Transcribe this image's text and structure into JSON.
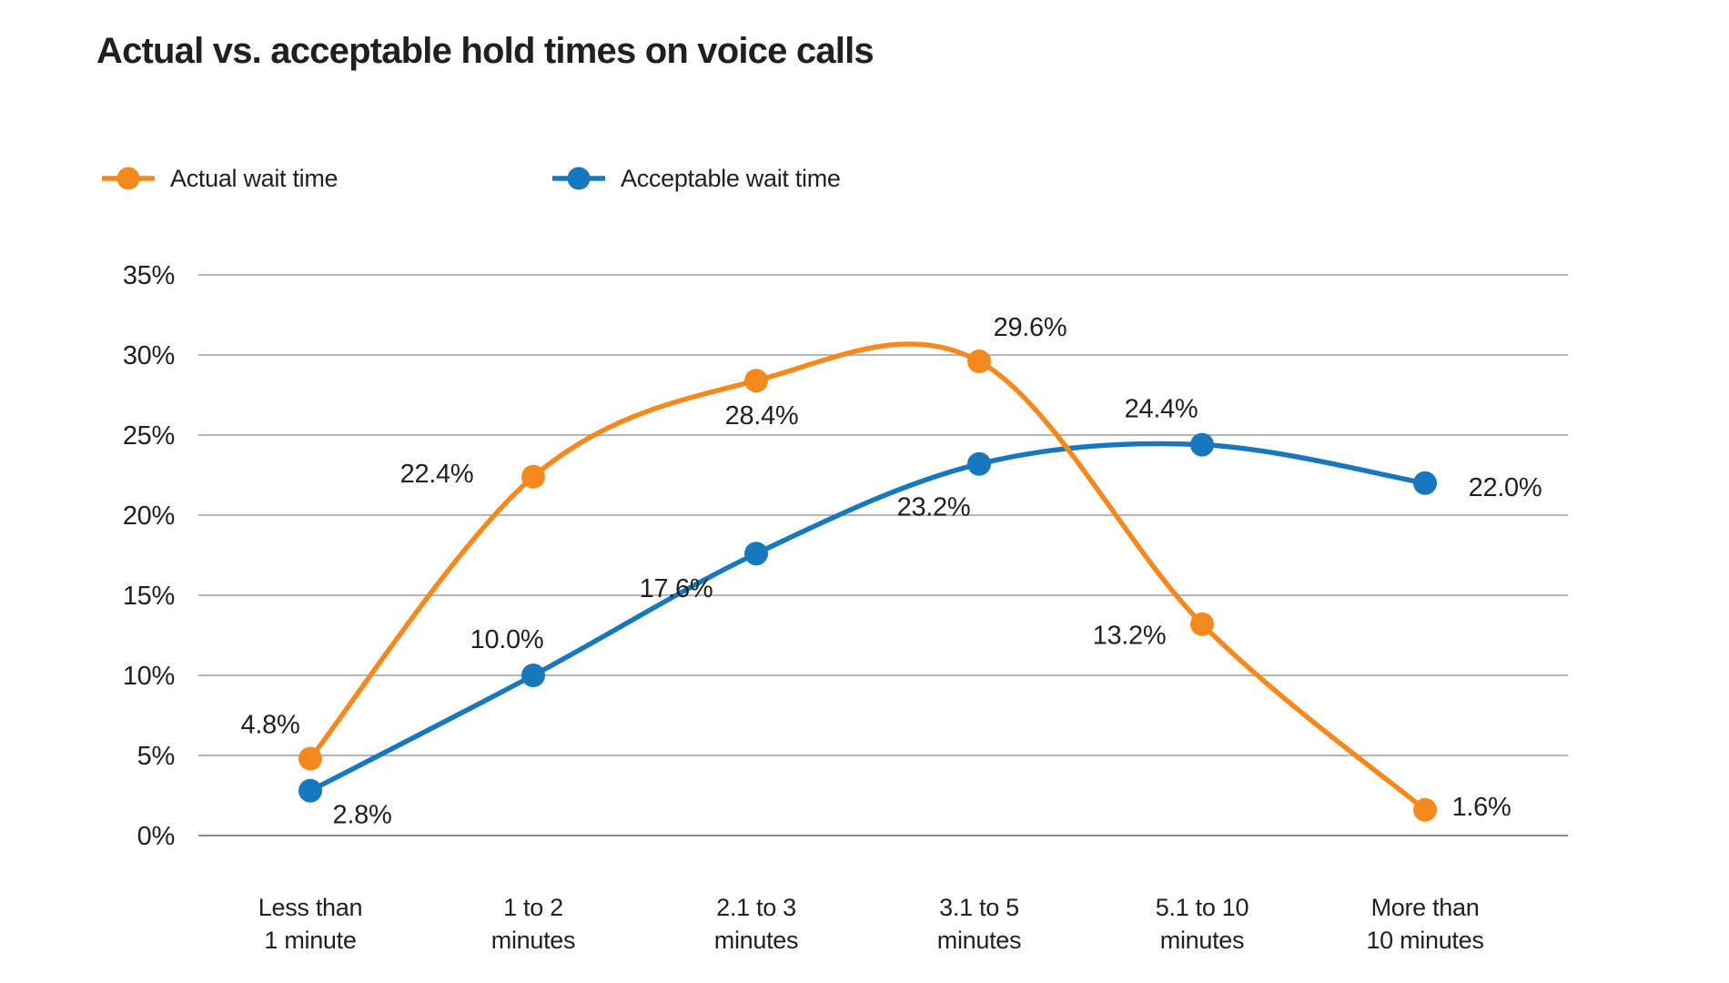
{
  "page": {
    "title": "Actual vs. acceptable hold times on voice calls"
  },
  "legend": {
    "items": [
      {
        "id": "actual",
        "label": "Actual wait time",
        "color": "#F6891E"
      },
      {
        "id": "acceptable",
        "label": "Acceptable wait time",
        "color": "#1878BE"
      }
    ]
  },
  "chart_data": {
    "type": "line",
    "title": "Actual vs. acceptable hold times on voice calls",
    "categories": [
      "Less than|1 minute",
      "1 to 2|minutes",
      "2.1 to 3|minutes",
      "3.1 to 5|minutes",
      "5.1 to 10|minutes",
      "More than|10 minutes"
    ],
    "series": [
      {
        "name": "Actual wait time",
        "color": "#F6891E",
        "values": [
          4.8,
          22.4,
          28.4,
          29.6,
          13.2,
          1.6
        ],
        "point_labels": [
          "4.8%",
          "22.4%",
          "28.4%",
          "29.6%",
          "13.2%",
          "1.6%"
        ],
        "label_offsets": [
          [
            -44,
            -38
          ],
          [
            -106,
            -4
          ],
          [
            6,
            38
          ],
          [
            56,
            -38
          ],
          [
            -80,
            12
          ],
          [
            62,
            -4
          ]
        ]
      },
      {
        "name": "Acceptable wait time",
        "color": "#1878BE",
        "values": [
          2.8,
          10.0,
          17.6,
          23.2,
          24.4,
          22.0
        ],
        "point_labels": [
          "2.8%",
          "10.0%",
          "17.6%",
          "23.2%",
          "24.4%",
          "22.0%"
        ],
        "label_offsets": [
          [
            57,
            26
          ],
          [
            -29,
            -40
          ],
          [
            -88,
            38
          ],
          [
            -50,
            47
          ],
          [
            -45,
            -40
          ],
          [
            88,
            4
          ]
        ]
      }
    ],
    "yticks": {
      "labels": [
        "0%",
        "5%",
        "10%",
        "15%",
        "20%",
        "25%",
        "30%",
        "35%"
      ],
      "values": [
        0,
        5,
        10,
        15,
        20,
        25,
        30,
        35
      ]
    },
    "ylim": [
      0,
      35
    ],
    "grid": true,
    "legend_position": "top-left",
    "smooth": true
  },
  "colors": {
    "text": "#231F20",
    "grid": "#9D9D9D",
    "baseline_grid": "#8A8A8A"
  }
}
